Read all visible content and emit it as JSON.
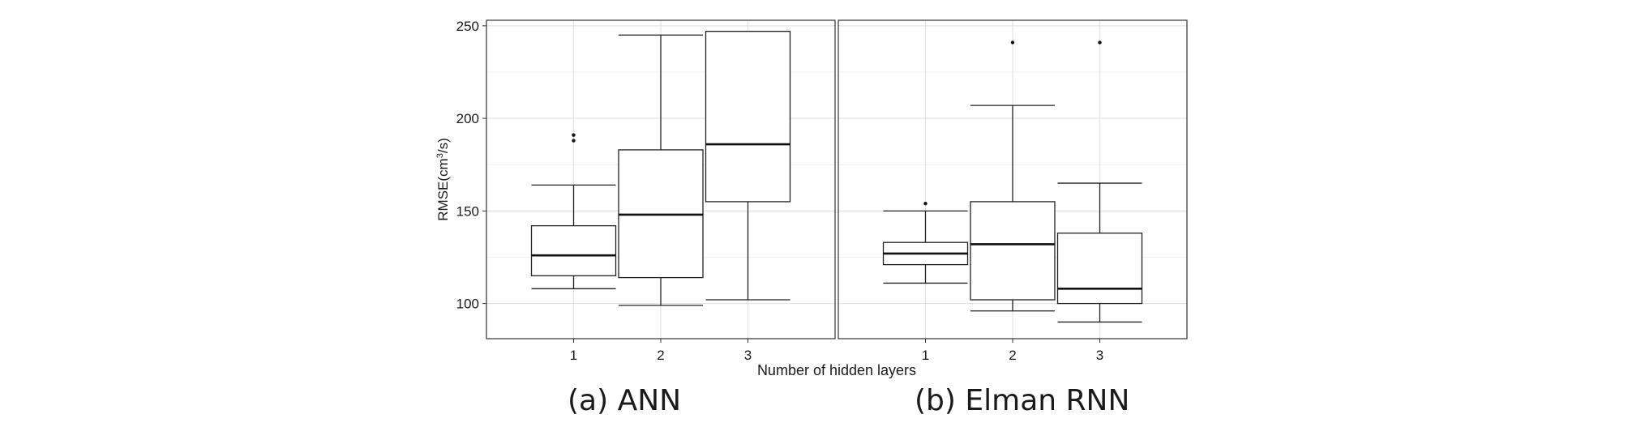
{
  "chart_data": {
    "type": "box",
    "ylabel": "RMSE(cm",
    "ylabel_sup": "3",
    "ylabel_tail": "/s)",
    "xlabel": "Number of hidden layers",
    "ylim": [
      81,
      253
    ],
    "yticks": [
      100,
      150,
      200,
      250
    ],
    "grid": true,
    "panels": [
      {
        "caption": "(a) ANN",
        "categories": [
          "1",
          "2",
          "3"
        ],
        "boxes": [
          {
            "category": "1",
            "whisker_low": 108,
            "q1": 115,
            "median": 126,
            "q3": 142,
            "whisker_high": 164,
            "outliers": [
              188,
              191
            ]
          },
          {
            "category": "2",
            "whisker_low": 99,
            "q1": 114,
            "median": 148,
            "q3": 183,
            "whisker_high": 245,
            "outliers": []
          },
          {
            "category": "3",
            "whisker_low": 102,
            "q1": 155,
            "median": 186,
            "q3": 247,
            "whisker_high": 247,
            "outliers": []
          }
        ]
      },
      {
        "caption": "(b) Elman RNN",
        "categories": [
          "1",
          "2",
          "3"
        ],
        "boxes": [
          {
            "category": "1",
            "whisker_low": 111,
            "q1": 121,
            "median": 127,
            "q3": 133,
            "whisker_high": 150,
            "outliers": [
              154
            ]
          },
          {
            "category": "2",
            "whisker_low": 96,
            "q1": 102,
            "median": 132,
            "q3": 155,
            "whisker_high": 207,
            "outliers": [
              241
            ]
          },
          {
            "category": "3",
            "whisker_low": 90,
            "q1": 100,
            "median": 108,
            "q3": 138,
            "whisker_high": 165,
            "outliers": [
              241
            ]
          }
        ]
      }
    ]
  }
}
